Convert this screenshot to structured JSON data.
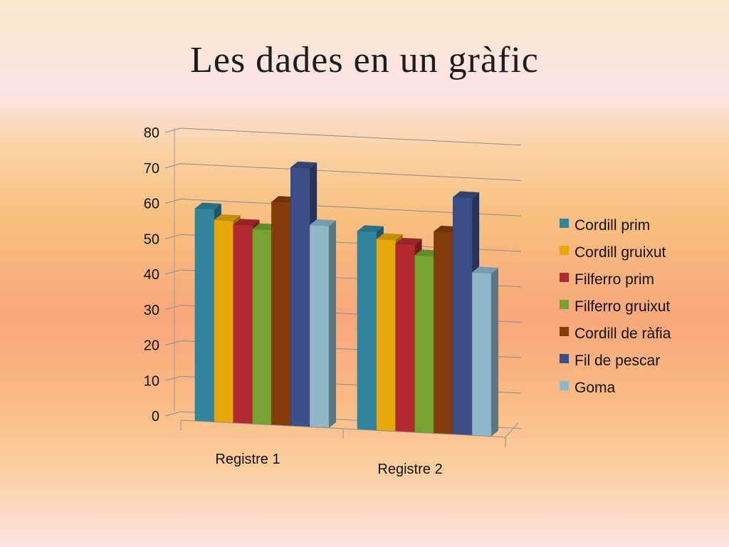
{
  "slide": {
    "title": "Les dades en un gràfic"
  },
  "chart_data": {
    "type": "bar",
    "title": "Les dades en un gràfic",
    "xlabel": "",
    "ylabel": "",
    "ylim": [
      0,
      80
    ],
    "yticks": [
      0,
      10,
      20,
      30,
      40,
      50,
      60,
      70,
      80
    ],
    "grid": true,
    "legend_position": "right",
    "categories": [
      "Registre 1",
      "Registre 2"
    ],
    "series": [
      {
        "name": "Cordill prim",
        "values": [
          60,
          56
        ],
        "color": "#31849b"
      },
      {
        "name": "Cordill gruixut",
        "values": [
          57,
          54
        ],
        "color": "#e6a80a"
      },
      {
        "name": "Filferro prim",
        "values": [
          56,
          53
        ],
        "color": "#b22a30"
      },
      {
        "name": "Filferro gruixut",
        "values": [
          55,
          50
        ],
        "color": "#77a230"
      },
      {
        "name": "Cordill de ràfia",
        "values": [
          63,
          57
        ],
        "color": "#843c0c"
      },
      {
        "name": "Fil de pescar",
        "values": [
          73,
          67
        ],
        "color": "#3b4e85"
      },
      {
        "name": " Goma",
        "values": [
          57,
          46
        ],
        "color": "#8fb6c9"
      }
    ]
  }
}
